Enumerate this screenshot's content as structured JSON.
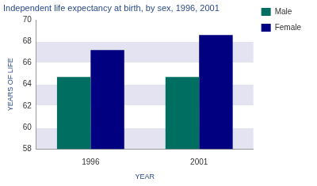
{
  "chart_data": {
    "type": "bar",
    "title": "Independent life expectancy at birth, by sex, 1996, 2001",
    "x_label": "YEAR",
    "y_label": "YEARS OF LIFE",
    "categories": [
      "1996",
      "2001"
    ],
    "series": [
      {
        "name": "Male",
        "color": "#006f62",
        "values": [
          64.7,
          64.7
        ]
      },
      {
        "name": "Female",
        "color": "#000080",
        "values": [
          67.2,
          68.6
        ]
      }
    ],
    "ylim": [
      58,
      70
    ],
    "yticks": [
      58,
      60,
      62,
      64,
      66,
      68,
      70
    ],
    "grid": true,
    "legend": "right"
  }
}
